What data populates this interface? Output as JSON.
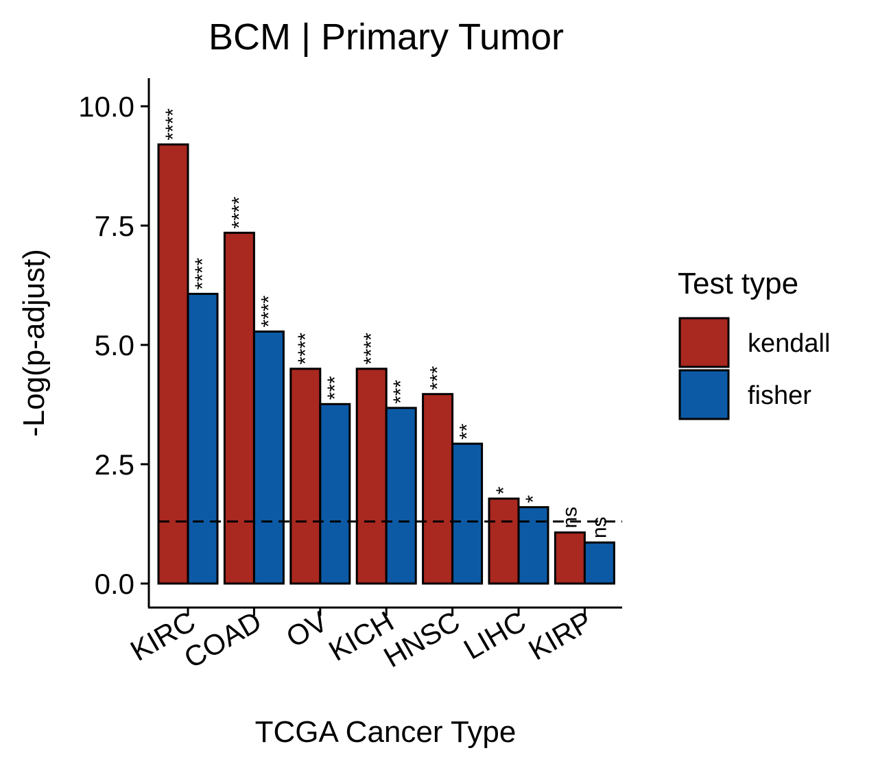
{
  "chart_data": {
    "type": "bar",
    "title": "BCM | Primary Tumor",
    "xlabel": "TCGA Cancer Type",
    "ylabel": "-Log(p-adjust)",
    "categories": [
      "KIRC",
      "COAD",
      "OV",
      "KICH",
      "HNSC",
      "LIHC",
      "KIRP"
    ],
    "ylim": [
      -0.5,
      10.6
    ],
    "yticks": [
      "0.0",
      "2.5",
      "5.0",
      "7.5",
      "10.0"
    ],
    "grid": false,
    "threshold_line": 1.3,
    "series": [
      {
        "name": "kendall",
        "color": "#a9281f",
        "values": [
          9.2,
          7.35,
          4.5,
          4.5,
          3.97,
          1.78,
          1.07
        ],
        "labels": [
          "****",
          "****",
          "****",
          "****",
          "***",
          "*",
          "ns"
        ]
      },
      {
        "name": "fisher",
        "color": "#0c5aa6",
        "values": [
          6.07,
          5.28,
          3.76,
          3.68,
          2.93,
          1.6,
          0.86
        ],
        "labels": [
          "****",
          "****",
          "***",
          "***",
          "**",
          "*",
          "ns"
        ]
      }
    ],
    "legend": {
      "title": "Test type",
      "placement": "right"
    }
  }
}
